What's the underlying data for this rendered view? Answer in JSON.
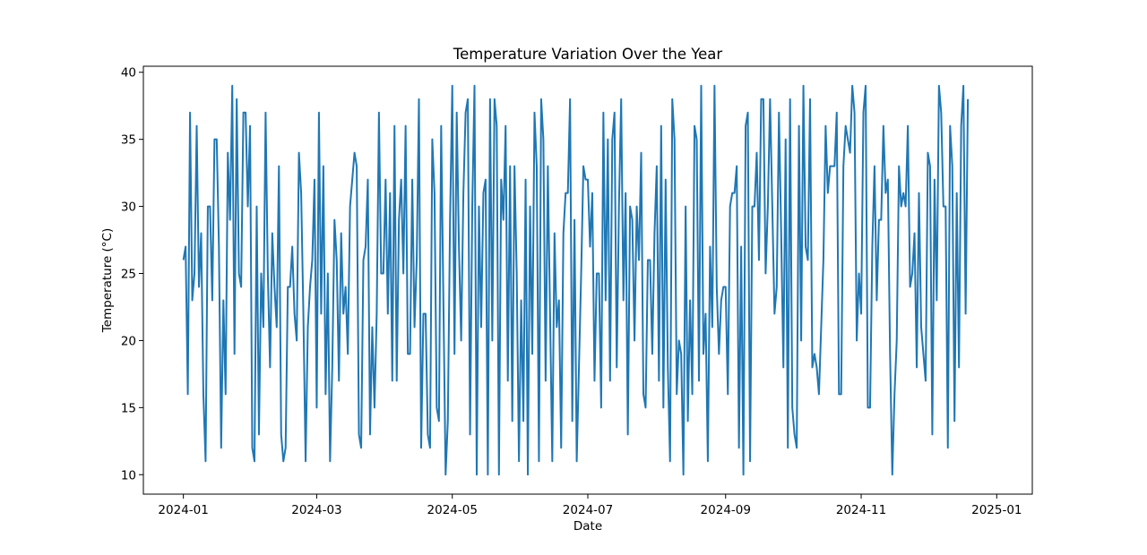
{
  "chart_data": {
    "type": "line",
    "title": "Temperature Variation Over the Year",
    "xlabel": "Date",
    "ylabel": "Temperature (°C)",
    "x_ticks": [
      "2024-01",
      "2024-03",
      "2024-05",
      "2024-07",
      "2024-09",
      "2024-11",
      "2025-01"
    ],
    "y_ticks": [
      10,
      15,
      20,
      25,
      30,
      35,
      40
    ],
    "xlim": [
      "2023-12-14",
      "2025-01-17"
    ],
    "ylim": [
      8.55,
      40.45
    ],
    "grid": false,
    "line_color": "#1f77b4",
    "series": [
      {
        "start_date": "2024-01-01",
        "values": [
          26,
          27,
          16,
          37,
          23,
          25,
          36,
          24,
          28,
          16,
          11,
          30,
          30,
          23,
          35,
          35,
          27,
          12,
          23,
          16,
          34,
          29,
          39,
          19,
          38,
          25,
          24,
          37,
          37,
          30,
          36,
          12,
          11,
          30,
          13,
          25,
          21,
          37,
          25,
          18,
          28,
          24,
          21,
          33,
          13,
          11,
          12,
          24,
          24,
          27,
          22,
          20,
          34,
          31,
          22,
          11,
          21,
          24,
          26,
          32,
          15,
          37,
          22,
          33,
          16,
          25,
          11,
          18,
          29,
          26,
          17,
          28,
          22,
          24,
          19,
          30,
          32,
          34,
          33,
          13,
          12,
          26,
          27,
          32,
          13,
          21,
          15,
          22,
          37,
          25,
          25,
          32,
          22,
          31,
          17,
          36,
          17,
          29,
          32,
          25,
          36,
          19,
          19,
          32,
          21,
          26,
          38,
          12,
          22,
          22,
          13,
          12,
          35,
          31,
          15,
          14,
          36,
          23,
          10,
          14,
          29,
          39,
          19,
          37,
          27,
          20,
          31,
          37,
          38,
          13,
          30,
          39,
          10,
          30,
          21,
          31,
          32,
          10,
          38,
          20,
          38,
          36,
          10,
          32,
          29,
          36,
          17,
          33,
          14,
          33,
          25,
          11,
          23,
          14,
          32,
          10,
          30,
          19,
          37,
          33,
          11,
          38,
          35,
          17,
          33,
          22,
          11,
          28,
          21,
          23,
          12,
          28,
          31,
          31,
          38,
          14,
          29,
          11,
          18,
          25,
          33,
          32,
          32,
          27,
          31,
          17,
          25,
          25,
          15,
          37,
          23,
          35,
          17,
          35,
          37,
          18,
          30,
          38,
          23,
          31,
          13,
          30,
          29,
          20,
          30,
          26,
          34,
          16,
          15,
          26,
          26,
          19,
          28,
          33,
          17,
          36,
          15,
          32,
          18,
          11,
          38,
          35,
          16,
          20,
          19,
          10,
          30,
          14,
          23,
          16,
          36,
          35,
          17,
          39,
          19,
          22,
          11,
          27,
          21,
          39,
          24,
          19,
          23,
          24,
          24,
          16,
          30,
          31,
          31,
          33,
          12,
          27,
          10,
          36,
          37,
          11,
          30,
          30,
          34,
          26,
          38,
          38,
          25,
          30,
          38,
          30,
          22,
          24,
          37,
          28,
          18,
          35,
          12,
          38,
          15,
          13,
          12,
          36,
          20,
          39,
          27,
          26,
          38,
          18,
          19,
          18,
          16,
          21,
          26,
          36,
          31,
          33,
          33,
          33,
          37,
          16,
          16,
          33,
          36,
          35,
          34,
          39,
          37,
          20,
          25,
          22,
          37,
          39,
          15,
          15,
          27,
          33,
          23,
          29,
          29,
          36,
          31,
          32,
          19,
          10,
          16,
          20,
          33,
          30,
          31,
          30,
          36,
          24,
          25,
          28,
          18,
          31,
          21,
          19,
          17,
          34,
          33,
          13,
          32,
          23,
          39,
          37,
          30,
          30,
          12,
          36,
          33,
          14,
          31,
          18,
          36,
          39,
          22,
          38
        ]
      }
    ]
  }
}
